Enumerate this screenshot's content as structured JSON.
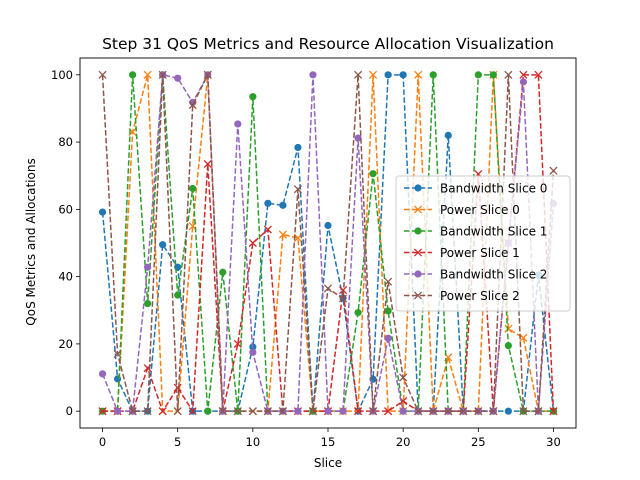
{
  "chart_data": {
    "type": "line",
    "title": "Step 31 QoS Metrics and Resource Allocation Visualization",
    "xlabel": "Slice",
    "ylabel": "QoS Metrics and Allocations",
    "xlim": [
      -1.5,
      31.5
    ],
    "ylim": [
      -5,
      105
    ],
    "xticks": [
      0,
      5,
      10,
      15,
      20,
      25,
      30
    ],
    "yticks": [
      0,
      20,
      40,
      60,
      80,
      100
    ],
    "grid": false,
    "legend_position": "center-right",
    "x": [
      0,
      1,
      2,
      3,
      4,
      5,
      6,
      7,
      8,
      9,
      10,
      11,
      12,
      13,
      14,
      15,
      16,
      17,
      18,
      19,
      20,
      21,
      22,
      23,
      24,
      25,
      26,
      27,
      28,
      29,
      30
    ],
    "series": [
      {
        "name": "Bandwidth Slice 0",
        "color": "#1f77b4",
        "marker": "circle",
        "values": [
          59.2,
          9.6,
          0,
          0,
          49.5,
          42.8,
          0,
          0,
          0,
          0,
          19.1,
          61.8,
          61.2,
          78.4,
          0,
          55.2,
          33.6,
          0,
          9.5,
          100,
          100,
          0,
          0,
          82,
          0,
          0,
          0,
          0,
          0,
          40.5,
          0
        ]
      },
      {
        "name": "Power Slice 0",
        "color": "#ff7f0e",
        "marker": "x",
        "values": [
          0,
          0,
          83,
          100,
          0,
          0,
          55,
          100,
          0,
          0,
          0,
          0,
          52.5,
          51.5,
          0,
          0,
          0,
          0,
          100,
          0,
          0,
          100,
          0,
          16,
          0,
          0,
          100,
          24.5,
          21.8,
          0,
          0
        ]
      },
      {
        "name": "Bandwidth Slice 1",
        "color": "#2ca02c",
        "marker": "circle",
        "values": [
          0,
          0,
          100,
          32,
          100,
          34.5,
          66.2,
          0,
          41.3,
          0,
          93.5,
          0,
          0,
          0,
          0,
          0,
          0,
          29.3,
          70.6,
          29.8,
          0,
          0,
          100,
          0,
          0,
          100,
          100,
          19.5,
          0,
          0,
          0
        ]
      },
      {
        "name": "Power Slice 1",
        "color": "#d62728",
        "marker": "x",
        "values": [
          0,
          0,
          0,
          12.8,
          0,
          7,
          0,
          73.5,
          0,
          20,
          50,
          54,
          0,
          0,
          0,
          0,
          36,
          0,
          0,
          0,
          3,
          0,
          0,
          0,
          0,
          70.5,
          0,
          50,
          100,
          100,
          0
        ]
      },
      {
        "name": "Bandwidth Slice 2",
        "color": "#9467bd",
        "marker": "circle",
        "values": [
          11.1,
          0,
          0,
          42.8,
          100,
          99,
          91.8,
          100,
          0,
          85.4,
          17.5,
          0,
          0,
          0,
          100,
          0,
          0,
          81.2,
          0,
          21.7,
          0,
          0,
          0,
          0,
          0,
          0,
          0,
          50,
          97.9,
          0,
          61.7
        ]
      },
      {
        "name": "Power Slice 2",
        "color": "#8c564b",
        "marker": "x",
        "values": [
          100,
          17,
          0,
          0,
          100,
          0,
          91,
          100,
          0,
          0,
          0,
          0,
          0,
          66,
          0,
          36.5,
          33.5,
          100,
          0,
          38.5,
          10,
          0,
          0,
          0,
          0,
          0,
          0,
          100,
          0,
          0,
          71.5
        ]
      }
    ]
  }
}
